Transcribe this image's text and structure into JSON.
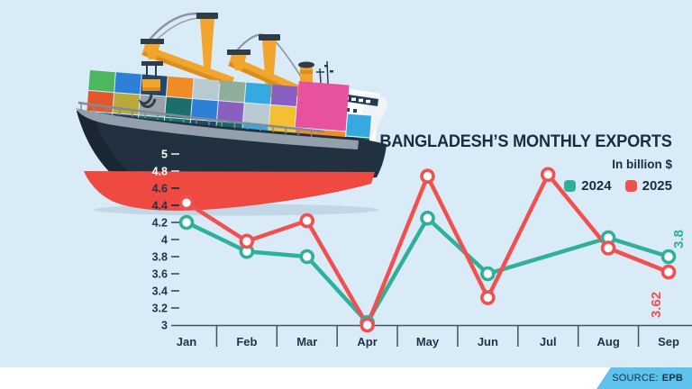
{
  "title": "BANGLADESH’S MONTHLY EXPORTS",
  "subtitle": "In billion $",
  "source": {
    "label": "SOURCE:",
    "value": "EPB"
  },
  "chart_data": {
    "type": "line",
    "categories": [
      "Jan",
      "Feb",
      "Mar",
      "Apr",
      "May",
      "Jun",
      "Jul",
      "Aug",
      "Sep"
    ],
    "unit": "billion $",
    "ylim": [
      3,
      5
    ],
    "y_ticks": [
      3,
      3.2,
      3.4,
      3.6,
      3.8,
      4,
      4.2,
      4.4,
      4.6,
      4.8,
      5
    ],
    "grid": false,
    "legend_position": "top-right",
    "series": [
      {
        "name": "2024",
        "color": "#2fb099",
        "values": [
          4.2,
          3.86,
          3.8,
          3.03,
          4.25,
          3.6,
          null,
          4.02,
          3.8
        ],
        "end_label": "3.8",
        "note": "no marker drawn at Jul; line passes through ~3.8"
      },
      {
        "name": "2025",
        "color": "#f15050",
        "values": [
          4.43,
          3.98,
          4.22,
          3.0,
          4.74,
          3.32,
          4.76,
          3.9,
          3.62
        ],
        "end_label": "3.62"
      }
    ]
  },
  "colors": {
    "background": "#d9ebf7",
    "accent_2024": "#2fb099",
    "accent_2025": "#f15050",
    "text_dark": "#1d2c3c",
    "axis": "#44525f",
    "source_badge": "#5ec2ee",
    "bottom_strip": "#ffffff"
  }
}
